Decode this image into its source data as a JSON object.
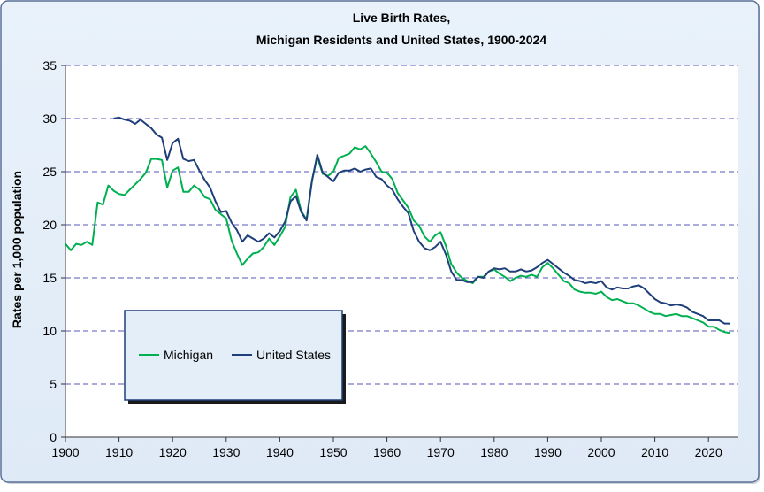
{
  "chart_data": {
    "type": "line",
    "title": "Live Birth Rates,",
    "subtitle": "Michigan Residents and United States, 1900-2024",
    "xlabel": "",
    "ylabel": "Rates per 1,000 population",
    "xlim": [
      1900,
      2025
    ],
    "ylim": [
      0,
      35
    ],
    "xticks": [
      "1900",
      "1910",
      "1920",
      "1930",
      "1940",
      "1950",
      "1960",
      "1970",
      "1980",
      "1990",
      "2000",
      "2010",
      "2020"
    ],
    "yticks": [
      "0",
      "5",
      "10",
      "15",
      "20",
      "25",
      "30",
      "35"
    ],
    "grid": "horizontal dashed",
    "legend": "bottom-left",
    "series": [
      {
        "name": "Michigan",
        "color": "#00b050",
        "start_year": 1900,
        "values": [
          18.2,
          17.6,
          18.2,
          18.1,
          18.4,
          18.1,
          22.1,
          21.9,
          23.7,
          23.2,
          22.9,
          22.8,
          23.3,
          23.8,
          24.3,
          24.9,
          26.2,
          26.2,
          26.1,
          23.5,
          25.1,
          25.4,
          23.1,
          23.1,
          23.7,
          23.3,
          22.6,
          22.4,
          21.4,
          21.0,
          20.6,
          18.5,
          17.3,
          16.2,
          16.8,
          17.3,
          17.4,
          17.9,
          18.7,
          18.1,
          18.9,
          19.8,
          22.6,
          23.3,
          21.3,
          20.5,
          24.2,
          26.4,
          24.8,
          24.6,
          25.0,
          26.3,
          26.5,
          26.7,
          27.3,
          27.1,
          27.4,
          26.7,
          25.9,
          25.0,
          24.9,
          24.3,
          23.0,
          22.3,
          21.6,
          20.4,
          19.9,
          18.9,
          18.4,
          19.0,
          19.3,
          18.0,
          16.3,
          15.5,
          15.0,
          14.7,
          14.5,
          15.1,
          15.1,
          15.6,
          15.8,
          15.4,
          15.1,
          14.7,
          15.0,
          15.2,
          15.1,
          15.3,
          15.1,
          16.0,
          16.4,
          15.9,
          15.3,
          14.7,
          14.5,
          13.9,
          13.7,
          13.6,
          13.6,
          13.5,
          13.7,
          13.2,
          12.9,
          13.0,
          12.8,
          12.6,
          12.6,
          12.4,
          12.1,
          11.8,
          11.6,
          11.6,
          11.4,
          11.5,
          11.6,
          11.4,
          11.4,
          11.2,
          11.0,
          10.8,
          10.4,
          10.4,
          10.1,
          9.9,
          9.8
        ]
      },
      {
        "name": "United States",
        "color": "#1f3f7a",
        "start_year": 1909,
        "values": [
          30.0,
          30.1,
          29.9,
          29.8,
          29.5,
          29.9,
          29.5,
          29.1,
          28.5,
          28.2,
          26.1,
          27.7,
          28.1,
          26.2,
          26.0,
          26.1,
          25.1,
          24.2,
          23.5,
          22.2,
          21.2,
          21.3,
          20.2,
          19.5,
          18.4,
          19.0,
          18.7,
          18.4,
          18.7,
          19.2,
          18.8,
          19.4,
          20.3,
          22.2,
          22.7,
          21.2,
          20.4,
          24.1,
          26.6,
          24.9,
          24.5,
          24.1,
          24.9,
          25.1,
          25.1,
          25.3,
          25.0,
          25.2,
          25.3,
          24.5,
          24.3,
          23.7,
          23.3,
          22.4,
          21.7,
          21.1,
          19.4,
          18.4,
          17.8,
          17.6,
          17.9,
          18.4,
          17.2,
          15.6,
          14.8,
          14.8,
          14.6,
          14.6,
          15.1,
          15.0,
          15.6,
          15.9,
          15.8,
          15.9,
          15.6,
          15.6,
          15.8,
          15.6,
          15.7,
          16.0,
          16.4,
          16.7,
          16.3,
          15.9,
          15.5,
          15.2,
          14.8,
          14.7,
          14.5,
          14.6,
          14.5,
          14.7,
          14.1,
          13.9,
          14.1,
          14.0,
          14.0,
          14.2,
          14.3,
          14.0,
          13.5,
          13.0,
          12.7,
          12.6,
          12.4,
          12.5,
          12.4,
          12.2,
          11.8,
          11.6,
          11.4,
          11.0,
          11.0,
          11.0,
          10.7,
          10.7
        ]
      }
    ]
  }
}
